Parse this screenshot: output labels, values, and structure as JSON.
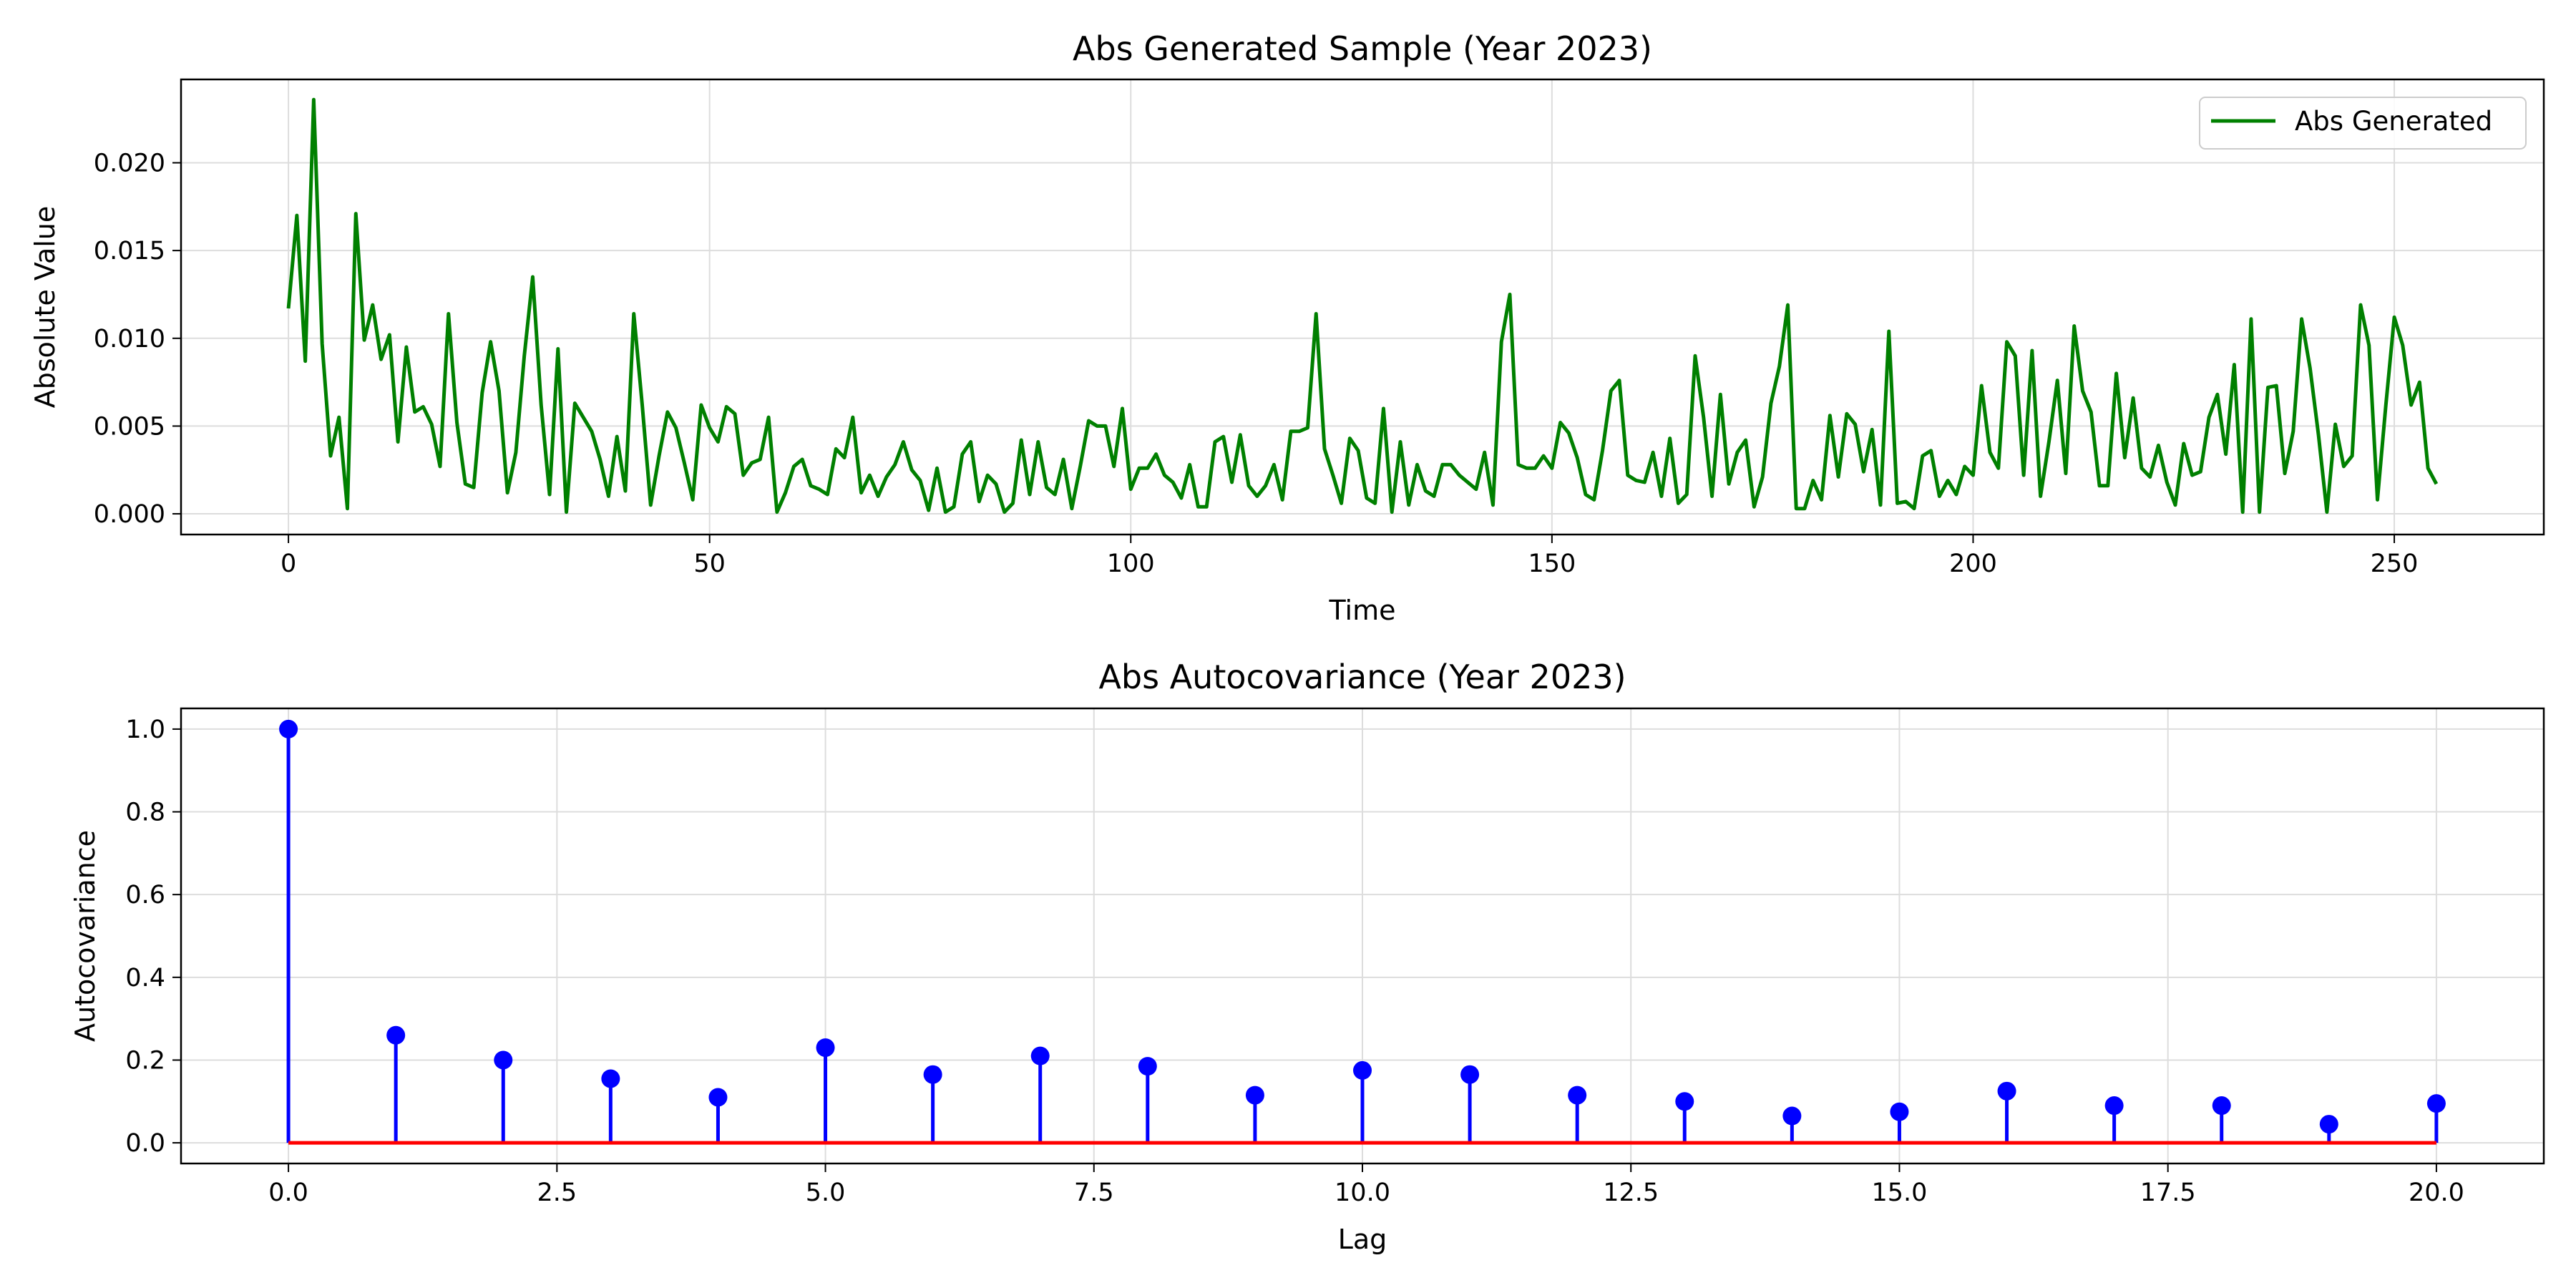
{
  "colors": {
    "line": "#008000",
    "stem": "#0000ff",
    "marker": "#0000ff",
    "baseline": "#ff0000",
    "grid": "#dddddd",
    "axes": "#000000"
  },
  "chart_data": [
    {
      "type": "line",
      "title": "Abs Generated Sample (Year 2023)",
      "xlabel": "Time",
      "ylabel": "Absolute Value",
      "xlim": [
        -12.75,
        267.75
      ],
      "ylim": [
        -0.00118,
        0.02475
      ],
      "xticks": [
        0,
        50,
        100,
        150,
        200,
        250
      ],
      "xtick_labels": [
        "0",
        "50",
        "100",
        "150",
        "200",
        "250"
      ],
      "yticks": [
        0.0,
        0.005,
        0.01,
        0.015,
        0.02
      ],
      "ytick_labels": [
        "0.000",
        "0.005",
        "0.010",
        "0.015",
        "0.020"
      ],
      "grid": true,
      "legend": {
        "position": "upper right",
        "entries": [
          "Abs Generated"
        ]
      },
      "series": [
        {
          "name": "Abs Generated",
          "color": "#008000",
          "x_start": 0,
          "x_step": 1,
          "values": [
            0.0117,
            0.017,
            0.0087,
            0.0236,
            0.0097,
            0.0033,
            0.0055,
            0.0003,
            0.0171,
            0.0099,
            0.0119,
            0.0088,
            0.0102,
            0.0041,
            0.0095,
            0.0058,
            0.0061,
            0.0051,
            0.0027,
            0.0114,
            0.0052,
            0.0017,
            0.0015,
            0.0069,
            0.0098,
            0.007,
            0.0012,
            0.0035,
            0.009,
            0.0135,
            0.0062,
            0.0011,
            0.0094,
            0.0001,
            0.0063,
            0.0055,
            0.0047,
            0.0031,
            0.001,
            0.0044,
            0.0013,
            0.0114,
            0.0062,
            0.0005,
            0.0033,
            0.0058,
            0.0049,
            0.0029,
            0.0008,
            0.0062,
            0.0049,
            0.0041,
            0.0061,
            0.0057,
            0.0022,
            0.0029,
            0.0031,
            0.0055,
            0.0001,
            0.0012,
            0.0027,
            0.0031,
            0.0016,
            0.0014,
            0.0011,
            0.0037,
            0.0032,
            0.0055,
            0.0012,
            0.0022,
            0.001,
            0.0021,
            0.0028,
            0.0041,
            0.0025,
            0.0019,
            0.0002,
            0.0026,
            0.0001,
            0.0004,
            0.0034,
            0.0041,
            0.0007,
            0.0022,
            0.0017,
            0.0001,
            0.0006,
            0.0042,
            0.0011,
            0.0041,
            0.0015,
            0.0011,
            0.0031,
            0.0003,
            0.0027,
            0.0053,
            0.005,
            0.005,
            0.0027,
            0.006,
            0.0014,
            0.0026,
            0.0026,
            0.0034,
            0.0022,
            0.0018,
            0.0009,
            0.0028,
            0.0004,
            0.0004,
            0.0041,
            0.0044,
            0.0018,
            0.0045,
            0.0016,
            0.001,
            0.0016,
            0.0028,
            0.0008,
            0.0047,
            0.0047,
            0.0049,
            0.0114,
            0.0037,
            0.0022,
            0.0006,
            0.0043,
            0.0036,
            0.0009,
            0.0006,
            0.006,
            0.0001,
            0.0041,
            0.0005,
            0.0028,
            0.0013,
            0.001,
            0.0028,
            0.0028,
            0.0022,
            0.0018,
            0.0014,
            0.0035,
            0.0005,
            0.0098,
            0.0125,
            0.0028,
            0.0026,
            0.0026,
            0.0033,
            0.0026,
            0.0052,
            0.0046,
            0.0032,
            0.0011,
            0.0008,
            0.0036,
            0.007,
            0.0076,
            0.0022,
            0.0019,
            0.0018,
            0.0035,
            0.001,
            0.0043,
            0.0006,
            0.0011,
            0.009,
            0.0055,
            0.001,
            0.0068,
            0.0017,
            0.0035,
            0.0042,
            0.0004,
            0.0021,
            0.0063,
            0.0084,
            0.0119,
            0.0003,
            0.0003,
            0.0019,
            0.0008,
            0.0056,
            0.0021,
            0.0057,
            0.0051,
            0.0024,
            0.0048,
            0.0005,
            0.0104,
            0.0006,
            0.0007,
            0.0003,
            0.0033,
            0.0036,
            0.001,
            0.0019,
            0.0011,
            0.0027,
            0.0022,
            0.0073,
            0.0035,
            0.0026,
            0.0098,
            0.009,
            0.0022,
            0.0093,
            0.001,
            0.0041,
            0.0076,
            0.0023,
            0.0107,
            0.007,
            0.0058,
            0.0016,
            0.0016,
            0.008,
            0.0032,
            0.0066,
            0.0026,
            0.0021,
            0.0039,
            0.0018,
            0.0005,
            0.004,
            0.0022,
            0.0024,
            0.0055,
            0.0068,
            0.0034,
            0.0085,
            0.0001,
            0.0111,
            0.0001,
            0.0072,
            0.0073,
            0.0023,
            0.0047,
            0.0111,
            0.0083,
            0.0045,
            0.0001,
            0.0051,
            0.0027,
            0.0033,
            0.0119,
            0.0096,
            0.0008,
            0.0062,
            0.0112,
            0.0096,
            0.0062,
            0.0075,
            0.0026,
            0.0017
          ]
        }
      ]
    },
    {
      "type": "stem",
      "title": "Abs Autocovariance (Year 2023)",
      "xlabel": "Lag",
      "ylabel": "Autocovariance",
      "xlim": [
        -1.0,
        21.0
      ],
      "ylim": [
        -0.05,
        1.05
      ],
      "xticks": [
        0,
        2.5,
        5,
        7.5,
        10,
        12.5,
        15,
        17.5,
        20
      ],
      "xtick_labels": [
        "0.0",
        "2.5",
        "5.0",
        "7.5",
        "10.0",
        "12.5",
        "15.0",
        "17.5",
        "20.0"
      ],
      "yticks": [
        0.0,
        0.2,
        0.4,
        0.6,
        0.8,
        1.0
      ],
      "ytick_labels": [
        "0.0",
        "0.2",
        "0.4",
        "0.6",
        "0.8",
        "1.0"
      ],
      "grid": true,
      "x": [
        0,
        1,
        2,
        3,
        4,
        5,
        6,
        7,
        8,
        9,
        10,
        11,
        12,
        13,
        14,
        15,
        16,
        17,
        18,
        19,
        20
      ],
      "values": [
        1.0,
        0.26,
        0.2,
        0.155,
        0.11,
        0.23,
        0.165,
        0.21,
        0.185,
        0.115,
        0.175,
        0.165,
        0.115,
        0.1,
        0.065,
        0.075,
        0.125,
        0.09,
        0.09,
        0.045,
        0.095
      ]
    }
  ]
}
